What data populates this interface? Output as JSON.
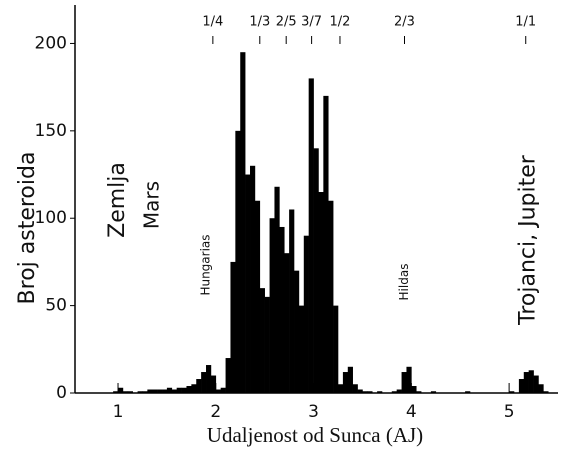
{
  "chart_data": {
    "type": "histogram",
    "xlabel": "Udaljenost od Sunca (AJ)",
    "ylabel": "Broj asteroida",
    "color": "#000000",
    "bins": [
      0.9,
      0.95,
      1,
      1.05,
      1.1,
      1.15,
      1.2,
      1.25,
      1.3,
      1.35,
      1.4,
      1.45,
      1.5,
      1.55,
      1.6,
      1.65,
      1.7,
      1.75,
      1.8,
      1.85,
      1.9,
      1.95,
      2,
      2.05,
      2.1,
      2.15,
      2.2,
      2.25,
      2.3,
      2.35,
      2.4,
      2.45,
      2.5,
      2.55,
      2.6,
      2.65,
      2.7,
      2.75,
      2.8,
      2.85,
      2.9,
      2.95,
      3,
      3.05,
      3.1,
      3.15,
      3.2,
      3.25,
      3.3,
      3.35,
      3.4,
      3.45,
      3.5,
      3.55,
      3.6,
      3.65,
      3.7,
      3.75,
      3.8,
      3.85,
      3.9,
      3.95,
      4,
      4.05,
      4.1,
      4.15,
      4.2,
      4.25,
      4.3,
      4.35,
      4.4,
      4.45,
      4.5,
      4.55,
      4.6,
      4.65,
      4.7,
      4.75,
      4.8,
      4.85,
      4.9,
      4.95,
      5,
      5.05,
      5.1,
      5.15,
      5.2,
      5.25,
      5.3,
      5.35,
      5.4
    ],
    "values": [
      0,
      1,
      3,
      1,
      1,
      0,
      1,
      1,
      2,
      2,
      2,
      2,
      3,
      2,
      3,
      3,
      4,
      5,
      8,
      12,
      16,
      10,
      2,
      3,
      20,
      75,
      150,
      195,
      125,
      130,
      110,
      60,
      55,
      100,
      118,
      95,
      80,
      105,
      70,
      50,
      90,
      180,
      140,
      115,
      170,
      110,
      50,
      5,
      12,
      15,
      5,
      2,
      1,
      1,
      0,
      1,
      0,
      0,
      1,
      2,
      12,
      15,
      4,
      1,
      0,
      0,
      1,
      0,
      0,
      0,
      0,
      0,
      0,
      1,
      0,
      0,
      0,
      0,
      0,
      0,
      0,
      0,
      1,
      0,
      8,
      12,
      13,
      10,
      5,
      1
    ],
    "xlim": [
      0.56,
      5.5
    ],
    "ylim": [
      0,
      222
    ],
    "xticks": [
      1,
      2,
      3,
      4,
      5
    ],
    "yticks": [
      0,
      50,
      100,
      150,
      200
    ],
    "resonances": [
      {
        "label": "1/4",
        "x": 1.97
      },
      {
        "label": "1/3",
        "x": 2.45
      },
      {
        "label": "2/5",
        "x": 2.72
      },
      {
        "label": "3/7",
        "x": 2.98
      },
      {
        "label": "1/2",
        "x": 3.27
      },
      {
        "label": "2/3",
        "x": 3.93
      },
      {
        "label": "1/1",
        "x": 5.17
      }
    ],
    "annotations": [
      {
        "text": "Zemlja",
        "x": 1.0
      },
      {
        "text": "Mars",
        "x": 1.36
      },
      {
        "text": "Hungarias",
        "x": 1.9
      },
      {
        "text": "Hildas",
        "x": 3.93
      },
      {
        "text": "Trojanci, Jupiter",
        "x": 5.2
      }
    ]
  }
}
